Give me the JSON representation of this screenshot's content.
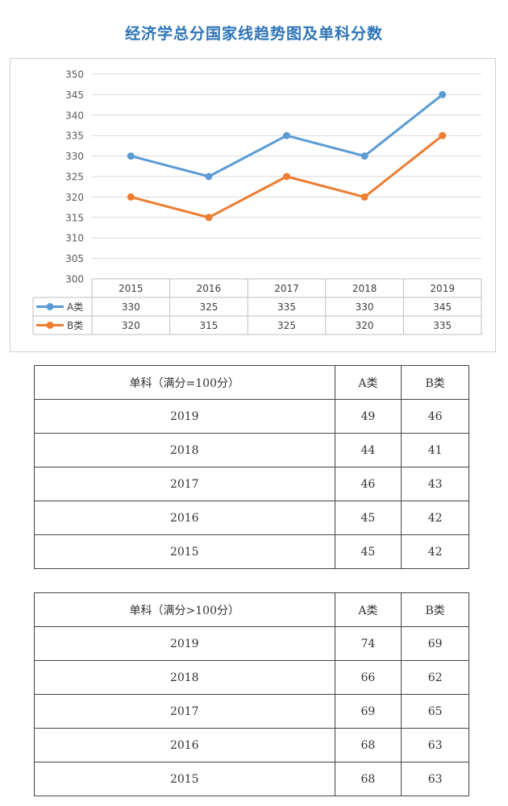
{
  "title": "经济学总分国家线趋势图及单科分数",
  "chart_data": {
    "type": "line",
    "title": "",
    "categories": [
      "2015",
      "2016",
      "2017",
      "2018",
      "2019"
    ],
    "series": [
      {
        "name": "A类",
        "values": [
          330,
          325,
          335,
          330,
          345
        ],
        "color": "#5b9bd5"
      },
      {
        "name": "B类",
        "values": [
          320,
          315,
          325,
          320,
          335
        ],
        "color": "#ed7d31"
      }
    ],
    "ylim": [
      300,
      350
    ],
    "yticks": [
      "350",
      "345",
      "340",
      "335",
      "330",
      "325",
      "320",
      "315",
      "310",
      "305",
      "300"
    ],
    "grid": true,
    "legend": "data-table",
    "data_table": {
      "rows": [
        {
          "label": "A类",
          "values": [
            "330",
            "325",
            "335",
            "330",
            "345"
          ]
        },
        {
          "label": "B类",
          "values": [
            "320",
            "315",
            "325",
            "320",
            "335"
          ]
        }
      ]
    }
  },
  "tables": [
    {
      "header": {
        "subject": "单科（满分=100分）",
        "a": "A类",
        "b": "B类"
      },
      "rows": [
        {
          "year": "2019",
          "a": "49",
          "b": "46"
        },
        {
          "year": "2018",
          "a": "44",
          "b": "41"
        },
        {
          "year": "2017",
          "a": "46",
          "b": "43"
        },
        {
          "year": "2016",
          "a": "45",
          "b": "42"
        },
        {
          "year": "2015",
          "a": "45",
          "b": "42"
        }
      ]
    },
    {
      "header": {
        "subject": "单科（满分>100分）",
        "a": "A类",
        "b": "B类"
      },
      "rows": [
        {
          "year": "2019",
          "a": "74",
          "b": "69"
        },
        {
          "year": "2018",
          "a": "66",
          "b": "62"
        },
        {
          "year": "2017",
          "a": "69",
          "b": "65"
        },
        {
          "year": "2016",
          "a": "68",
          "b": "63"
        },
        {
          "year": "2015",
          "a": "68",
          "b": "63"
        }
      ]
    }
  ]
}
